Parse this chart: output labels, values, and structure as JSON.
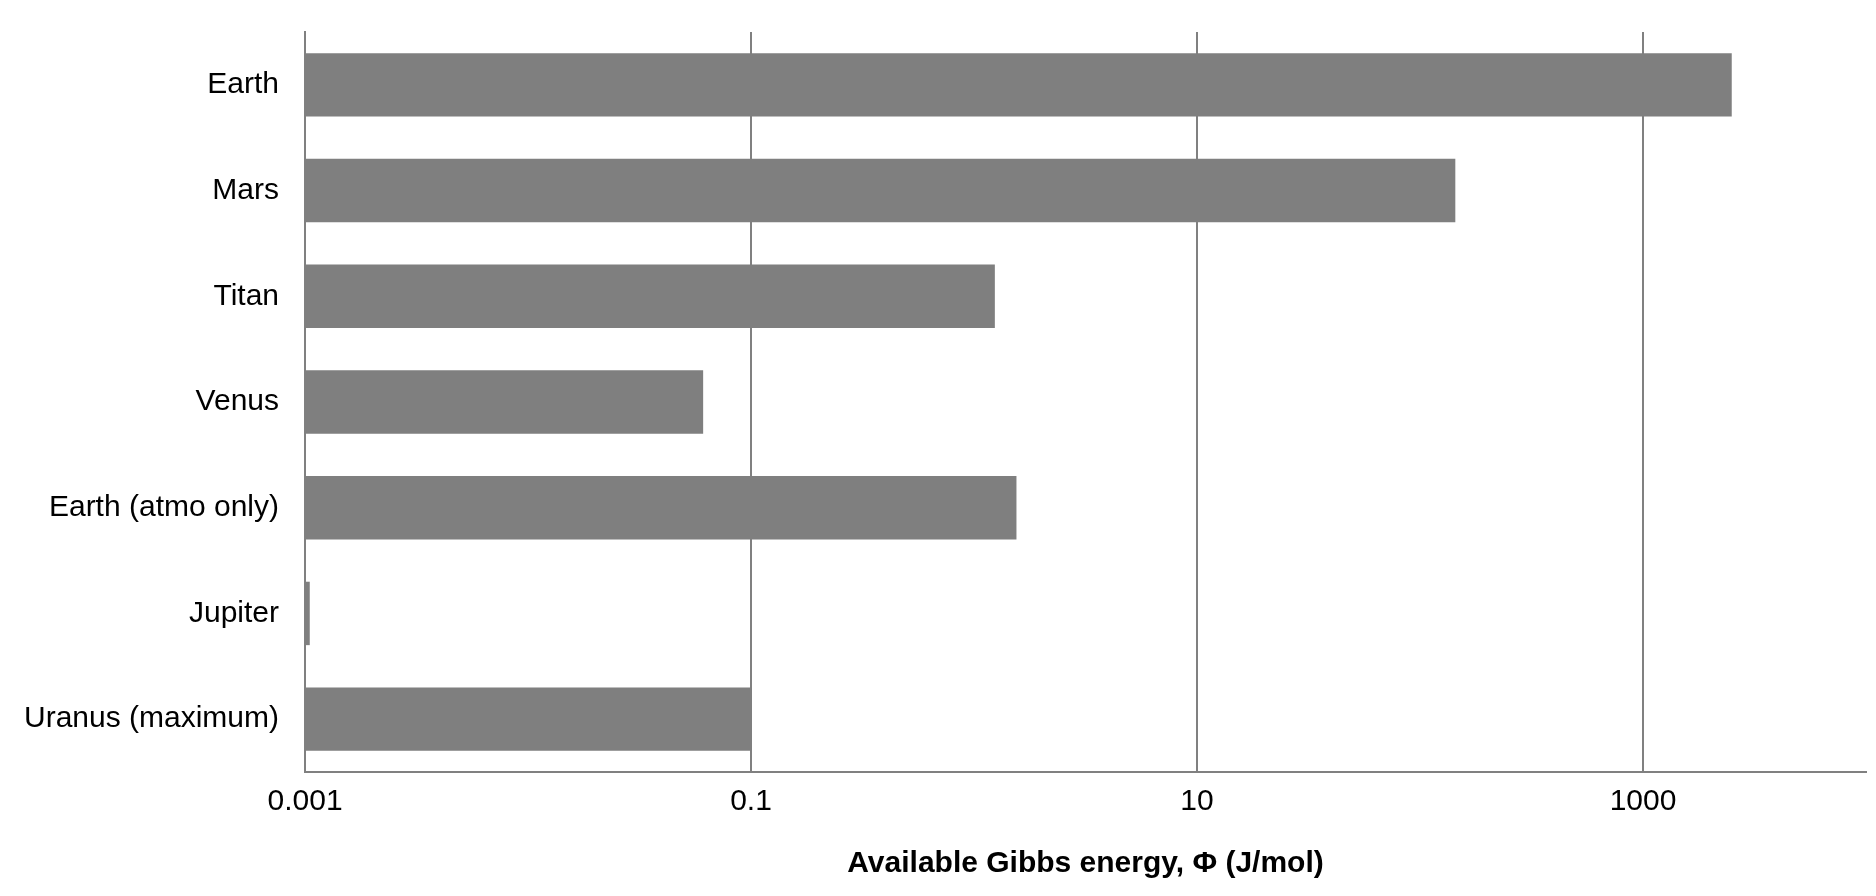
{
  "chart_data": {
    "type": "bar",
    "orientation": "horizontal",
    "log": "x",
    "xlabel": "Available Gibbs energy, Φ (J/mol)",
    "categories": [
      "Earth",
      "Mars",
      "Titan",
      "Venus",
      "Earth (atmo only)",
      "Jupiter",
      "Uranus (maximum)"
    ],
    "values": [
      2500,
      144,
      1.24,
      0.061,
      1.55,
      0.00105,
      0.1
    ],
    "color": "#7f7f7f",
    "xlim": [
      0.001,
      10000
    ],
    "xticks": [
      0.001,
      0.1,
      10,
      1000
    ],
    "grid": "x",
    "legend": false
  }
}
